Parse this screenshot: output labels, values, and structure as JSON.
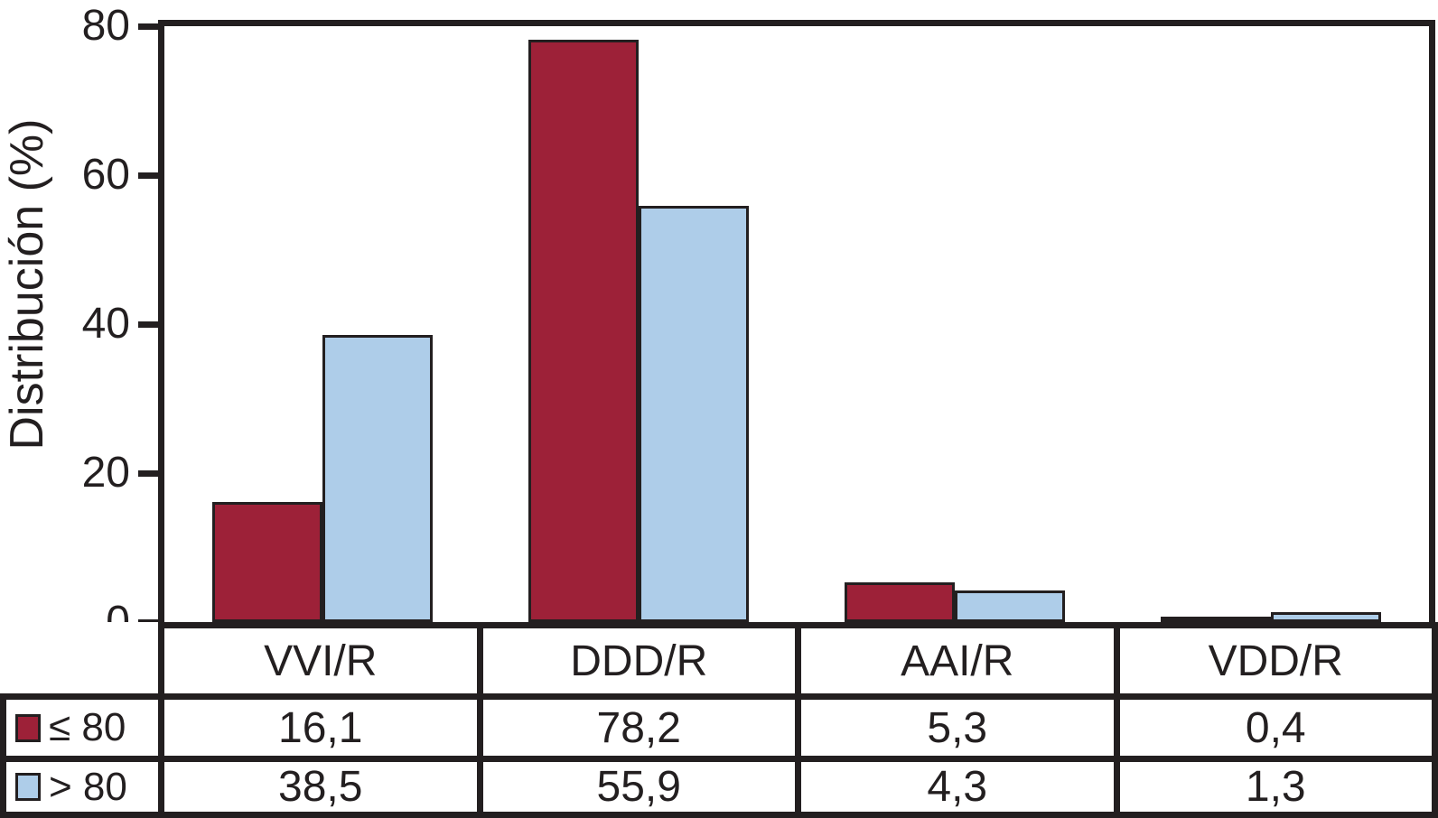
{
  "chart_data": {
    "type": "bar",
    "title": "",
    "ylabel": "Distribución (%)",
    "xlabel": "",
    "ylim": [
      0,
      80
    ],
    "yticks": [
      0,
      20,
      40,
      60,
      80
    ],
    "grid": false,
    "legend_position": "table-left",
    "categories": [
      "VVI/R",
      "DDD/R",
      "AAI/R",
      "VDD/R"
    ],
    "series": [
      {
        "name": "≤ 80",
        "color": "#9d2138",
        "values": [
          16.1,
          78.2,
          5.3,
          0.4
        ],
        "display_labels": [
          "16,1",
          "78,2",
          "5,3",
          "0,4"
        ]
      },
      {
        "name": "> 80",
        "color": "#aecde9",
        "values": [
          38.5,
          55.9,
          4.3,
          1.3
        ],
        "display_labels": [
          "38,5",
          "55,9",
          "4,3",
          "1,3"
        ]
      }
    ]
  },
  "colors": {
    "axis": "#231f20",
    "text": "#231f20",
    "background": "#ffffff",
    "series_le80": "#9d2138",
    "series_gt80": "#aecde9"
  }
}
